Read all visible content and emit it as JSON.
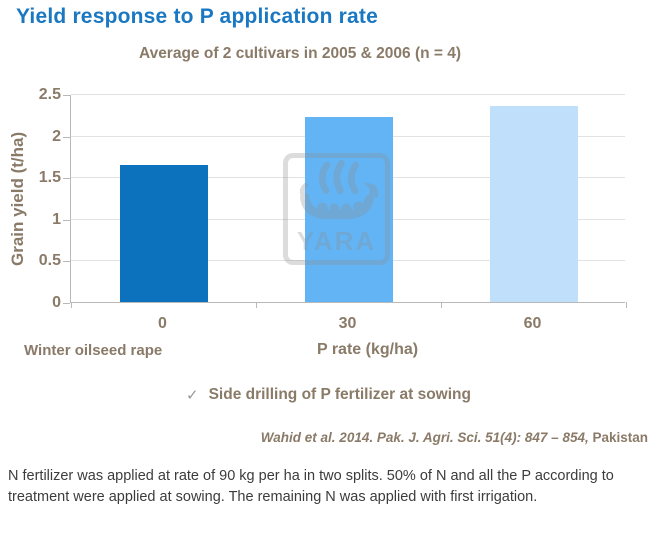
{
  "header": {
    "title": "Yield response to P application rate"
  },
  "chart_data": {
    "type": "bar",
    "title": "Average of 2 cultivars in 2005 & 2006 (n = 4)",
    "categories": [
      "0",
      "30",
      "60"
    ],
    "values": [
      1.65,
      2.22,
      2.35
    ],
    "bar_colors": [
      "#0d72bd",
      "#62b4f5",
      "#bfdffa"
    ],
    "xlabel": "P rate (kg/ha)",
    "ylabel": "Grain yield (t/ha)",
    "ylim": [
      0,
      2.5
    ],
    "yticks": [
      "0",
      "0.5",
      "1",
      "1.5",
      "2",
      "2.5"
    ],
    "grid": true,
    "legend_position": "none",
    "group_label": "Winter oilseed rape"
  },
  "annotations": {
    "checkmark": "✓",
    "bullet": "Side drilling of P fertilizer at sowing",
    "citation_italic": "Wahid et al. 2014. Pak. J. Agri. Sci. 51(4): 847 – 854,",
    "citation_plain": " Pakistan"
  },
  "watermark": {
    "label": "YARA"
  },
  "footnote": "N fertilizer was applied at rate of 90 kg per ha in two splits. 50% of N and all the P according to treatment were applied at sowing. The remaining N was applied with first irrigation.",
  "colors": {
    "title": "#1a78c2",
    "accent_text": "#8a7a68",
    "footnote_text": "#3c3c3c",
    "gridline": "#e2e2e2",
    "axis": "#b8b8b8",
    "watermark": "#8f8f8f"
  }
}
